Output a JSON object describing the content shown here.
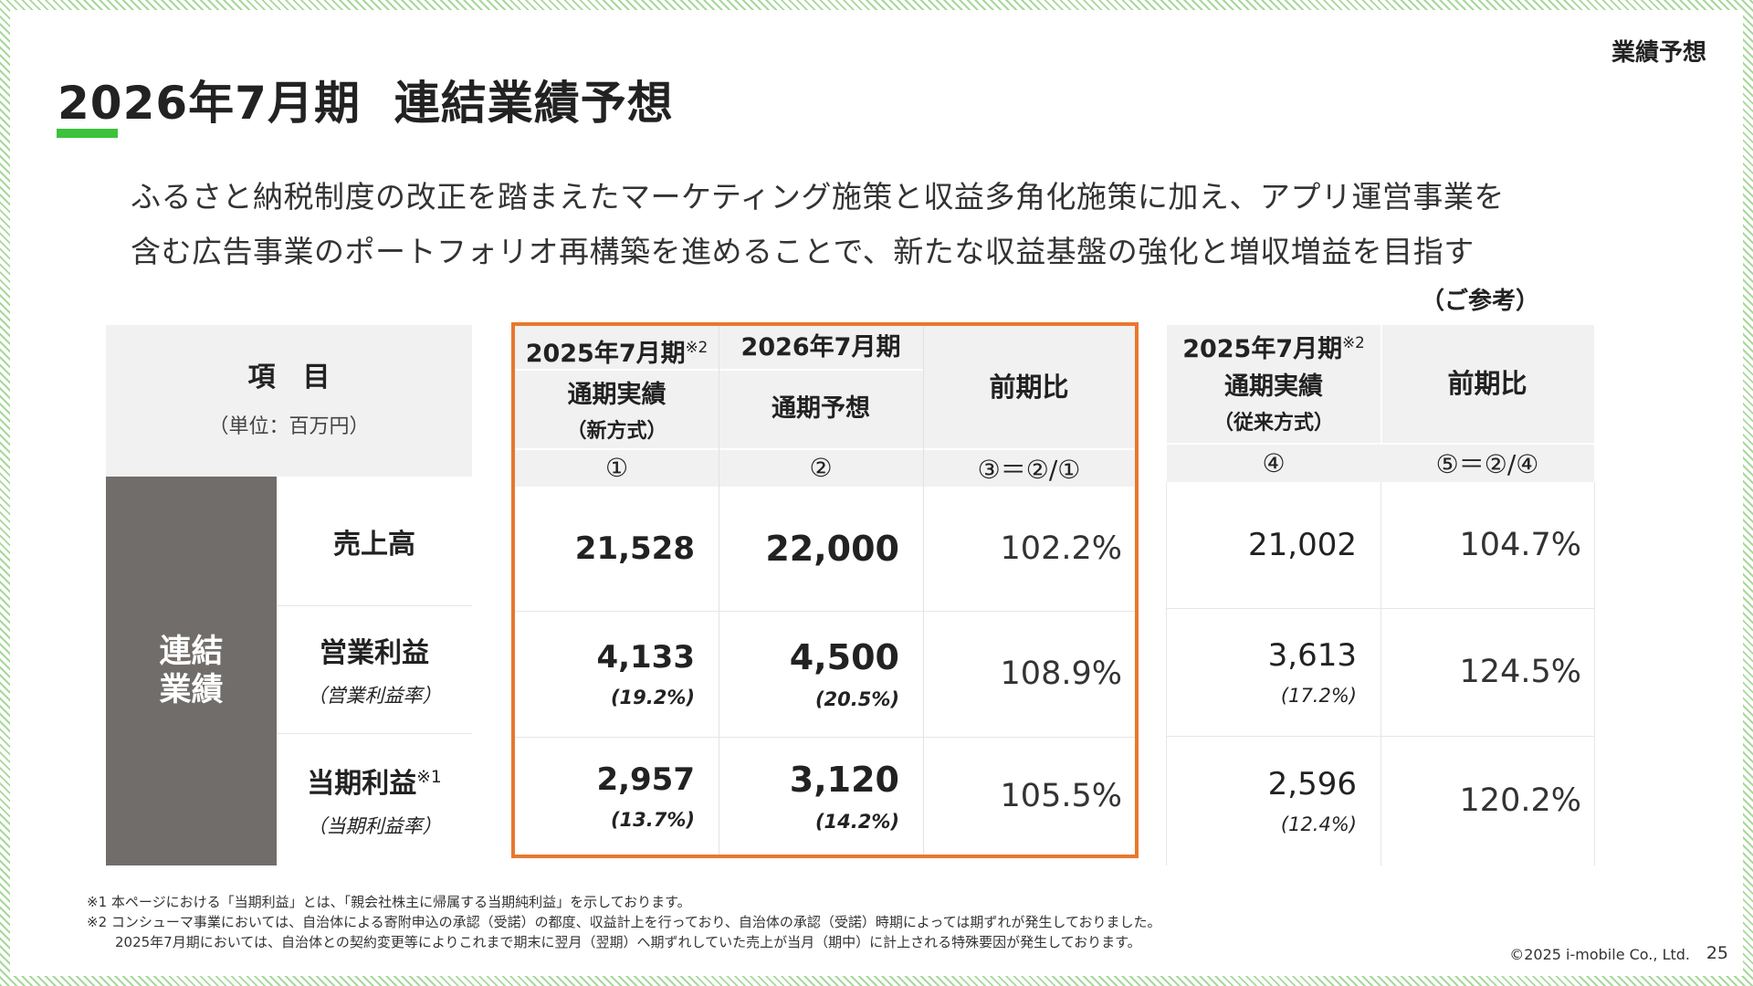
{
  "header": {
    "section_label": "業績予想",
    "title": "2026年7月期  連結業績予想",
    "accent_color": "#3cc23c"
  },
  "description": {
    "line1": "ふるさと納税制度の改正を踏まえたマーケティング施策と収益多角化施策に加え、アプリ運営事業を",
    "line2": "含む広告事業のポートフォリオ再構築を進めることで、新たな収益基盤の強化と増収増益を目指す"
  },
  "reference_label": "（ご参考）",
  "table": {
    "item_header": "項　目",
    "unit": "（単位：百万円）",
    "group_label_line1": "連結",
    "group_label_line2": "業績",
    "col1": {
      "period": "2025年7月期",
      "mark": "※2",
      "type": "通期実績",
      "method": "（新方式）",
      "index": "①"
    },
    "col2": {
      "period": "2026年7月期",
      "type": "通期予想",
      "index": "②"
    },
    "col3": {
      "header": "前期比",
      "index": "③＝②/①"
    },
    "col4": {
      "period": "2025年7月期",
      "mark": "※2",
      "type": "通期実績",
      "method": "（従来方式）",
      "index": "④"
    },
    "col5": {
      "header": "前期比",
      "index": "⑤＝②/④"
    },
    "rows": [
      {
        "label": "売上高",
        "note": "",
        "sub_label": "",
        "actual_new": "21,528",
        "actual_new_margin": "",
        "forecast": "22,000",
        "forecast_margin": "",
        "yoy_new": "102.2%",
        "actual_old": "21,002",
        "actual_old_margin": "",
        "yoy_old": "104.7%"
      },
      {
        "label": "営業利益",
        "note": "",
        "sub_label": "（営業利益率）",
        "actual_new": "4,133",
        "actual_new_margin": "(19.2%)",
        "forecast": "4,500",
        "forecast_margin": "(20.5%)",
        "yoy_new": "108.9%",
        "actual_old": "3,613",
        "actual_old_margin": "(17.2%)",
        "yoy_old": "124.5%"
      },
      {
        "label": "当期利益",
        "note": "※1",
        "sub_label": "（当期利益率）",
        "actual_new": "2,957",
        "actual_new_margin": "(13.7%)",
        "forecast": "3,120",
        "forecast_margin": "(14.2%)",
        "yoy_new": "105.5%",
        "actual_old": "2,596",
        "actual_old_margin": "(12.4%)",
        "yoy_old": "120.2%"
      }
    ],
    "highlight_color": "#e8782f",
    "group_block_color": "#716d6b"
  },
  "footnotes": {
    "note1": "※1 本ページにおける「当期利益」とは、「親会社株主に帰属する当期純利益」を示しております。",
    "note2": "※2 コンシューマ事業においては、自治体による寄附申込の承認（受諾）の都度、収益計上を行っており、自治体の承認（受諾）時期によっては期ずれが発生しておりました。",
    "note2_cont": "2025年7月期においては、自治体との契約変更等によりこれまで期末に翌月（翌期）へ期ずれしていた売上が当月（期中）に計上される特殊要因が発生しております。"
  },
  "copyright": "©2025 i-mobile Co., Ltd.",
  "page_number": "25"
}
